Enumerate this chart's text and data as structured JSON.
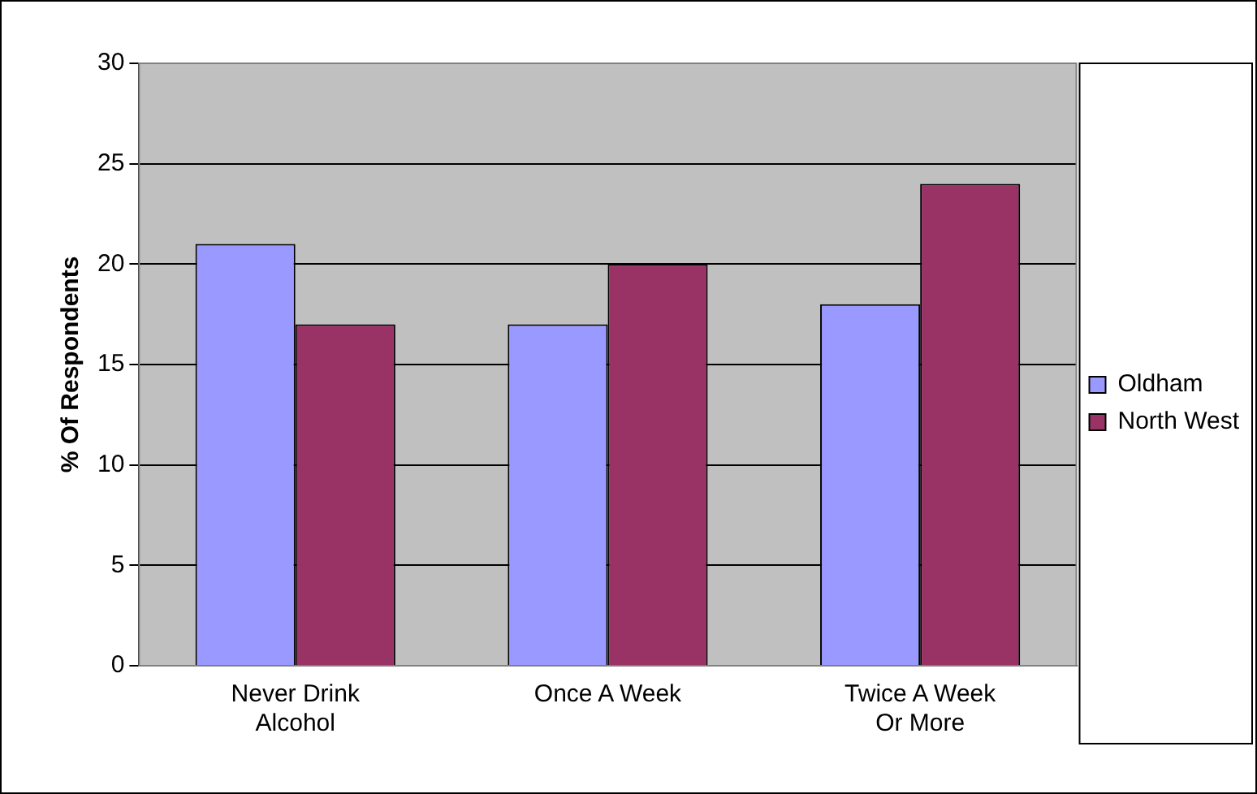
{
  "chart_data": {
    "type": "bar",
    "ylabel": "% Of Respondents",
    "categories": [
      "Never Drink Alcohol",
      "Once A Week",
      "Twice A Week Or More"
    ],
    "series": [
      {
        "name": "Oldham",
        "color": "#9999ff",
        "values": [
          21,
          17,
          18
        ]
      },
      {
        "name": "North West",
        "color": "#993366",
        "values": [
          17,
          20,
          24
        ]
      }
    ],
    "ylim": [
      0,
      30
    ],
    "yticks": [
      0,
      5,
      10,
      15,
      20,
      25,
      30
    ],
    "grid": "y",
    "legend": "right"
  }
}
